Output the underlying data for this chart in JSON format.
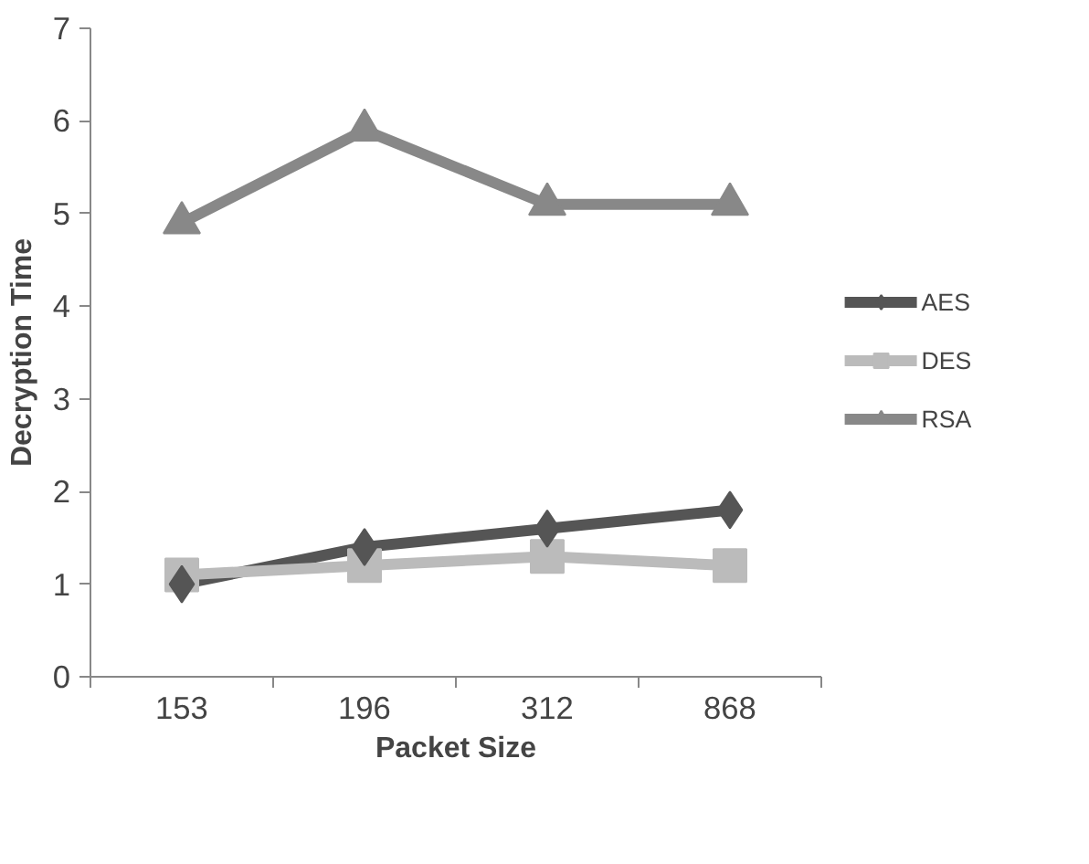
{
  "chart_data": {
    "type": "line",
    "xlabel": "Packet Size",
    "ylabel": "Decryption Time",
    "categories": [
      "153",
      "196",
      "312",
      "868"
    ],
    "series": [
      {
        "name": "AES",
        "color": "#555555",
        "marker": "diamond",
        "values": [
          1.0,
          1.4,
          1.6,
          1.8
        ]
      },
      {
        "name": "DES",
        "color": "#bbbbbb",
        "marker": "square",
        "values": [
          1.1,
          1.2,
          1.3,
          1.2
        ]
      },
      {
        "name": "RSA",
        "color": "#888888",
        "marker": "triangle",
        "values": [
          4.9,
          5.9,
          5.1,
          5.1
        ]
      }
    ],
    "ylim": [
      0,
      7
    ],
    "yticks": [
      0,
      1,
      2,
      3,
      4,
      5,
      6,
      7
    ],
    "grid": false,
    "legend": "right"
  }
}
